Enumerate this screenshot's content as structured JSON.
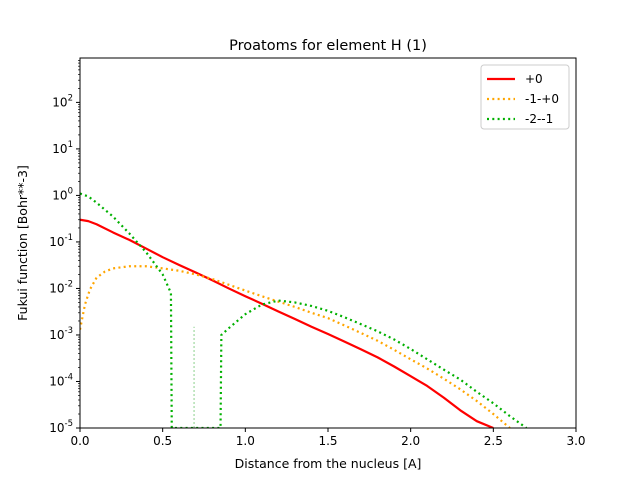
{
  "chart_data": {
    "type": "line",
    "title": "Proatoms for element H (1)",
    "xlabel": "Distance from the nucleus [A]",
    "ylabel": "Fukui function [Bohr**-3]",
    "xlim": [
      0.0,
      3.0
    ],
    "ylim": [
      1e-05,
      900
    ],
    "yscale": "log",
    "x_ticks": [
      "0.0",
      "0.5",
      "1.0",
      "1.5",
      "2.0",
      "2.5",
      "3.0"
    ],
    "y_ticks": [
      {
        "base": "10",
        "exp": "-5"
      },
      {
        "base": "10",
        "exp": "-4"
      },
      {
        "base": "10",
        "exp": "-3"
      },
      {
        "base": "10",
        "exp": "-2"
      },
      {
        "base": "10",
        "exp": "-1"
      },
      {
        "base": "10",
        "exp": "0"
      },
      {
        "base": "10",
        "exp": "1"
      },
      {
        "base": "10",
        "exp": "2"
      }
    ],
    "grid": false,
    "legend_position": "top-right",
    "series": [
      {
        "name": "+0",
        "color": "#ff0000",
        "style": "solid",
        "x": [
          0.0,
          0.05,
          0.1,
          0.2,
          0.3,
          0.4,
          0.5,
          0.6,
          0.7,
          0.8,
          0.9,
          1.0,
          1.1,
          1.2,
          1.3,
          1.4,
          1.5,
          1.6,
          1.7,
          1.8,
          1.9,
          2.0,
          2.1,
          2.2,
          2.3,
          2.4,
          2.5
        ],
        "y": [
          0.3,
          0.28,
          0.24,
          0.16,
          0.11,
          0.072,
          0.047,
          0.032,
          0.022,
          0.015,
          0.01,
          0.0068,
          0.0047,
          0.0032,
          0.0022,
          0.0015,
          0.00105,
          0.00072,
          0.00049,
          0.00033,
          0.00021,
          0.00013,
          8e-05,
          4.5e-05,
          2.4e-05,
          1.4e-05,
          1e-05
        ]
      },
      {
        "name": "-1-+0",
        "color": "#ffa500",
        "style": "dotted",
        "x": [
          0.0,
          0.03,
          0.06,
          0.1,
          0.15,
          0.2,
          0.3,
          0.4,
          0.5,
          0.6,
          0.7,
          0.8,
          0.9,
          1.0,
          1.1,
          1.2,
          1.3,
          1.4,
          1.5,
          1.6,
          1.7,
          1.8,
          1.9,
          2.0,
          2.1,
          2.2,
          2.3,
          2.4,
          2.5,
          2.6
        ],
        "y": [
          0.0013,
          0.0045,
          0.0095,
          0.017,
          0.023,
          0.027,
          0.03,
          0.03,
          0.027,
          0.024,
          0.02,
          0.016,
          0.012,
          0.009,
          0.0068,
          0.0052,
          0.004,
          0.003,
          0.0023,
          0.0016,
          0.0011,
          0.00075,
          0.00048,
          0.0003,
          0.00019,
          0.000115,
          6.8e-05,
          3.8e-05,
          2e-05,
          1e-05
        ]
      },
      {
        "name": "-2--1",
        "color": "#00b000",
        "style": "dotted",
        "x": [
          0.0,
          0.05,
          0.1,
          0.2,
          0.3,
          0.4,
          0.5,
          0.55,
          0.555,
          0.85,
          0.855,
          0.9,
          1.0,
          1.1,
          1.2,
          1.3,
          1.4,
          1.5,
          1.6,
          1.7,
          1.8,
          1.9,
          2.0,
          2.1,
          2.2,
          2.3,
          2.4,
          2.5,
          2.6,
          2.7
        ],
        "y": [
          1.1,
          0.95,
          0.7,
          0.35,
          0.15,
          0.06,
          0.02,
          0.008,
          1e-05,
          1e-05,
          0.001,
          0.0014,
          0.0028,
          0.0045,
          0.0055,
          0.005,
          0.0042,
          0.0033,
          0.0024,
          0.0017,
          0.0012,
          0.0008,
          0.0005,
          0.0003,
          0.00018,
          0.00011,
          6e-05,
          3.4e-05,
          1.8e-05,
          1e-05
        ]
      }
    ],
    "annotations": [
      {
        "type": "vertical-faint-line",
        "color": "#b2e0b2",
        "x": 0.69,
        "y_from": 1e-05,
        "y_to": 0.0015
      }
    ]
  }
}
